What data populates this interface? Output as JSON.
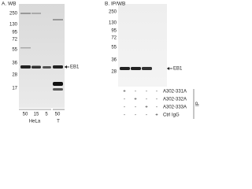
{
  "panels": [
    {
      "title": "A. WB",
      "markers": [
        "250",
        "130",
        "95",
        "72",
        "55",
        "36",
        "28",
        "17"
      ],
      "target": "EB1",
      "lane_amounts": [
        "50",
        "15",
        "5",
        "50"
      ],
      "groups": [
        "HeLa",
        "T"
      ]
    },
    {
      "title": "B. IP/WB",
      "markers": [
        "250",
        "130",
        "95",
        "72",
        "55",
        "36",
        "28"
      ],
      "target": "EB1",
      "rows": [
        {
          "label": "A302-331A",
          "signs": [
            "+",
            "-",
            "-",
            "-"
          ]
        },
        {
          "label": "A302-332A",
          "signs": [
            "-",
            "+",
            "-",
            "-"
          ]
        },
        {
          "label": "A302-333A",
          "signs": [
            "-",
            "-",
            "+",
            "-"
          ]
        },
        {
          "label": "Ctrl IgG",
          "signs": [
            "-",
            "-",
            "-",
            "+"
          ]
        }
      ],
      "side_label": "IP"
    }
  ]
}
